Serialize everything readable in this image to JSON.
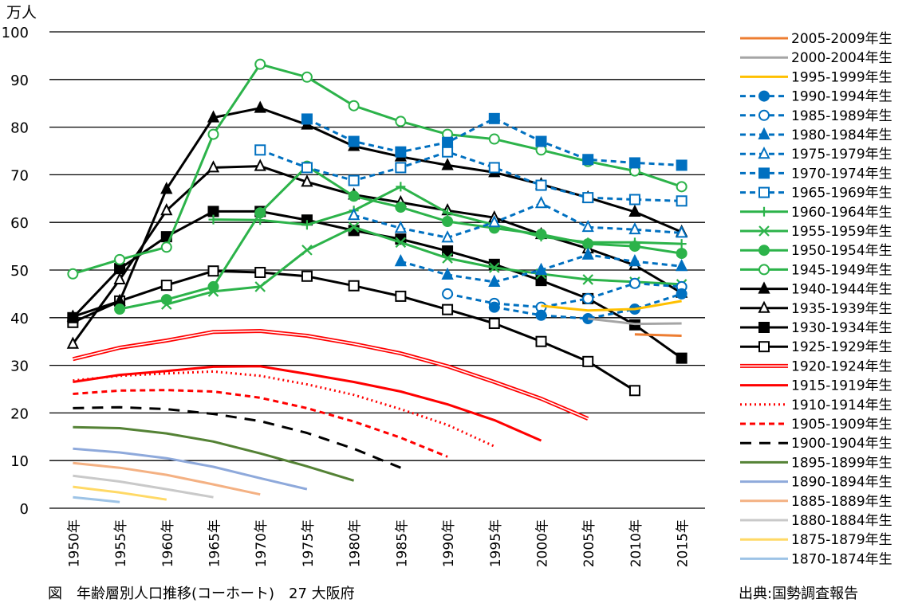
{
  "caption": "図　年齢層別人口推移(コーホート)　27 大阪府",
  "source": "出典:国勢調査報告",
  "chart_data": {
    "type": "line",
    "title": "",
    "xlabel": "",
    "ylabel": "万人",
    "ylim": [
      0,
      100
    ],
    "yticks": [
      "0",
      "10",
      "20",
      "30",
      "40",
      "50",
      "60",
      "70",
      "80",
      "90",
      "100"
    ],
    "categories": [
      "1950年",
      "1955年",
      "1960年",
      "1965年",
      "1970年",
      "1975年",
      "1980年",
      "1985年",
      "1990年",
      "1995年",
      "2000年",
      "2005年",
      "2010年",
      "2015年"
    ],
    "grid": true,
    "legend_position": "right",
    "series": [
      {
        "name": "2005-2009年生",
        "color": "#ED7D31",
        "dash": "solid",
        "marker": "none",
        "values": [
          null,
          null,
          null,
          null,
          null,
          null,
          null,
          null,
          null,
          null,
          null,
          null,
          36.5,
          36.2
        ]
      },
      {
        "name": "2000-2004年生",
        "color": "#A5A5A5",
        "dash": "solid",
        "marker": "none",
        "values": [
          null,
          null,
          null,
          null,
          null,
          null,
          null,
          null,
          null,
          null,
          null,
          39.8,
          38.7,
          38.8
        ]
      },
      {
        "name": "1995-1999年生",
        "color": "#FFC000",
        "dash": "solid",
        "marker": "none",
        "values": [
          null,
          null,
          null,
          null,
          null,
          null,
          null,
          null,
          null,
          null,
          42.5,
          41.5,
          41.8,
          43.5
        ]
      },
      {
        "name": "1990-1994年生",
        "color": "#0070C0",
        "dash": "dash",
        "marker": "circle-filled",
        "values": [
          null,
          null,
          null,
          null,
          null,
          null,
          null,
          null,
          null,
          42.2,
          40.5,
          39.8,
          41.8,
          45.0
        ]
      },
      {
        "name": "1985-1989年生",
        "color": "#0070C0",
        "dash": "dash",
        "marker": "circle-open",
        "values": [
          null,
          null,
          null,
          null,
          null,
          null,
          null,
          null,
          45.0,
          43.0,
          42.2,
          44.0,
          47.2,
          46.5
        ]
      },
      {
        "name": "1980-1984年生",
        "color": "#0070C0",
        "dash": "dash",
        "marker": "triangle-filled",
        "values": [
          null,
          null,
          null,
          null,
          null,
          null,
          null,
          51.8,
          49.0,
          47.5,
          50.0,
          53.2,
          51.8,
          50.8
        ]
      },
      {
        "name": "1975-1979年生",
        "color": "#0070C0",
        "dash": "dash",
        "marker": "triangle-open",
        "values": [
          null,
          null,
          null,
          null,
          null,
          null,
          61.5,
          58.8,
          56.8,
          60.0,
          64.0,
          59.0,
          58.5,
          57.8
        ]
      },
      {
        "name": "1970-1974年生",
        "color": "#0070C0",
        "dash": "dash",
        "marker": "square-filled",
        "values": [
          null,
          null,
          null,
          null,
          null,
          81.7,
          77.0,
          74.8,
          76.8,
          81.8,
          77.0,
          73.2,
          72.5,
          72.0
        ]
      },
      {
        "name": "1965-1969年生",
        "color": "#0070C0",
        "dash": "dash",
        "marker": "square-open",
        "values": [
          null,
          null,
          null,
          null,
          75.2,
          71.5,
          68.8,
          71.5,
          74.8,
          71.5,
          67.8,
          65.2,
          64.8,
          64.5
        ]
      },
      {
        "name": "1960-1964年生",
        "color": "#2CB34A",
        "dash": "solid",
        "marker": "plus",
        "values": [
          null,
          null,
          null,
          60.6,
          60.5,
          59.5,
          62.5,
          67.5,
          62.0,
          59.5,
          57.0,
          55.8,
          55.8,
          55.5
        ]
      },
      {
        "name": "1955-1959年生",
        "color": "#2CB34A",
        "dash": "solid",
        "marker": "x",
        "values": [
          null,
          null,
          42.8,
          45.5,
          46.5,
          54.2,
          59.0,
          55.8,
          52.5,
          50.5,
          49.2,
          48.0,
          47.5,
          47.0
        ]
      },
      {
        "name": "1950-1954年生",
        "color": "#2CB34A",
        "dash": "solid",
        "marker": "circle-filled",
        "values": [
          null,
          41.8,
          43.8,
          46.5,
          62.0,
          71.8,
          65.5,
          63.2,
          60.2,
          58.8,
          57.5,
          55.5,
          55.0,
          53.5
        ]
      },
      {
        "name": "1945-1949年生",
        "color": "#2CB34A",
        "dash": "solid",
        "marker": "circle-open",
        "values": [
          49.2,
          52.2,
          54.8,
          78.5,
          93.2,
          90.5,
          84.5,
          81.2,
          78.5,
          77.5,
          75.2,
          72.8,
          70.8,
          67.5
        ]
      },
      {
        "name": "1940-1944年生",
        "color": "#000000",
        "dash": "solid",
        "marker": "triangle-filled",
        "values": [
          40.2,
          43.5,
          67.0,
          82.0,
          84.0,
          80.5,
          76.0,
          73.8,
          72.0,
          70.5,
          68.0,
          65.2,
          62.2,
          58.0
        ]
      },
      {
        "name": "1935-1939年生",
        "color": "#000000",
        "dash": "solid",
        "marker": "triangle-open",
        "values": [
          34.5,
          48.0,
          62.5,
          71.5,
          71.8,
          68.5,
          65.8,
          64.2,
          62.5,
          61.0,
          57.5,
          54.5,
          51.0,
          45.2
        ]
      },
      {
        "name": "1930-1934年生",
        "color": "#000000",
        "dash": "solid",
        "marker": "square-filled",
        "values": [
          40.0,
          50.3,
          57.0,
          62.3,
          62.3,
          60.5,
          58.3,
          56.5,
          54.0,
          51.2,
          47.8,
          44.0,
          38.5,
          31.5
        ]
      },
      {
        "name": "1925-1929年生",
        "color": "#000000",
        "dash": "solid",
        "marker": "square-open",
        "values": [
          39.0,
          43.5,
          46.8,
          49.8,
          49.5,
          48.7,
          46.7,
          44.5,
          41.7,
          38.8,
          35.0,
          30.8,
          24.7,
          null
        ]
      },
      {
        "name": "1920-1924年生",
        "color": "#FF0000",
        "dash": "double",
        "marker": "none",
        "values": [
          31.3,
          33.7,
          35.2,
          37.0,
          37.2,
          36.2,
          34.5,
          32.5,
          29.8,
          26.5,
          23.0,
          18.8,
          null,
          null
        ]
      },
      {
        "name": "1915-1919年生",
        "color": "#FF0000",
        "dash": "solid",
        "marker": "none",
        "values": [
          26.5,
          28.0,
          28.8,
          29.7,
          29.8,
          28.2,
          26.5,
          24.5,
          21.8,
          18.5,
          14.2,
          null,
          null,
          null
        ]
      },
      {
        "name": "1910-1914年生",
        "color": "#FF0000",
        "dash": "dot",
        "marker": "none",
        "values": [
          26.8,
          27.8,
          28.3,
          28.7,
          27.8,
          26.0,
          23.8,
          20.8,
          17.5,
          13.0,
          null,
          null,
          null,
          null
        ]
      },
      {
        "name": "1905-1909年生",
        "color": "#FF0000",
        "dash": "dash",
        "marker": "none",
        "values": [
          24.0,
          24.7,
          24.8,
          24.5,
          23.2,
          21.0,
          18.2,
          14.8,
          10.8,
          null,
          null,
          null,
          null,
          null
        ]
      },
      {
        "name": "1900-1904年生",
        "color": "#000000",
        "dash": "longdash",
        "marker": "none",
        "values": [
          21.0,
          21.2,
          20.8,
          19.8,
          18.3,
          15.8,
          12.5,
          8.5,
          null,
          null,
          null,
          null,
          null,
          null
        ]
      },
      {
        "name": "1895-1899年生",
        "color": "#548235",
        "dash": "solid",
        "marker": "none",
        "values": [
          17.0,
          16.8,
          15.7,
          14.0,
          11.5,
          8.8,
          5.8,
          null,
          null,
          null,
          null,
          null,
          null,
          null
        ]
      },
      {
        "name": "1890-1894年生",
        "color": "#8EA9DB",
        "dash": "solid",
        "marker": "none",
        "values": [
          12.5,
          11.7,
          10.5,
          8.7,
          6.3,
          4.0,
          null,
          null,
          null,
          null,
          null,
          null,
          null,
          null
        ]
      },
      {
        "name": "1885-1889年生",
        "color": "#F4B183",
        "dash": "solid",
        "marker": "none",
        "values": [
          9.5,
          8.5,
          7.0,
          5.0,
          2.9,
          null,
          null,
          null,
          null,
          null,
          null,
          null,
          null,
          null
        ]
      },
      {
        "name": "1880-1884年生",
        "color": "#C9C9C9",
        "dash": "solid",
        "marker": "none",
        "values": [
          6.8,
          5.6,
          4.0,
          2.3,
          null,
          null,
          null,
          null,
          null,
          null,
          null,
          null,
          null,
          null
        ]
      },
      {
        "name": "1875-1879年生",
        "color": "#FFD966",
        "dash": "solid",
        "marker": "none",
        "values": [
          4.5,
          3.3,
          1.8,
          null,
          null,
          null,
          null,
          null,
          null,
          null,
          null,
          null,
          null,
          null
        ]
      },
      {
        "name": "1870-1874年生",
        "color": "#9DC3E6",
        "dash": "solid",
        "marker": "none",
        "values": [
          2.3,
          1.3,
          null,
          null,
          null,
          null,
          null,
          null,
          null,
          null,
          null,
          null,
          null,
          null
        ]
      }
    ]
  }
}
